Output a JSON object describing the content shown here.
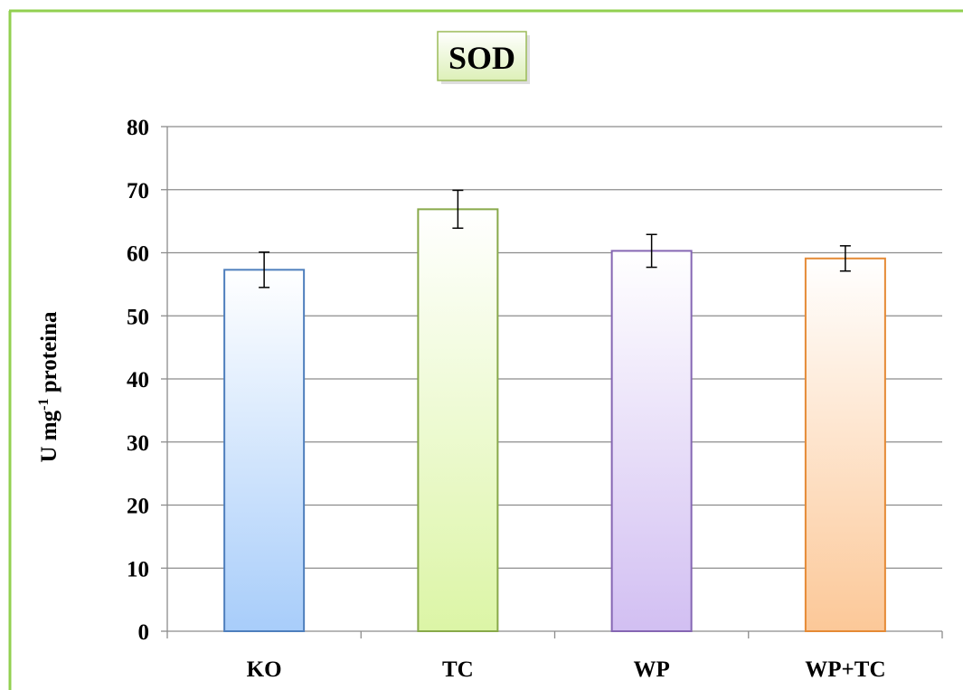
{
  "chart_data": {
    "type": "bar",
    "title": "SOD",
    "ylabel": "U mg",
    "ylabel_sup": "-1",
    "ylabel_after": " proteina",
    "categories": [
      "KO",
      "TC",
      "WP",
      "WP+TC"
    ],
    "values": [
      57.3,
      66.9,
      60.3,
      59.1
    ],
    "errors": [
      2.8,
      3.0,
      2.6,
      2.0
    ],
    "yticks": [
      "0",
      "10",
      "20",
      "30",
      "40",
      "50",
      "60",
      "70",
      "80"
    ],
    "ylim": [
      0,
      80
    ],
    "grid": true,
    "colors": {
      "bar_fills": [
        "#a8cdfa",
        "#dcf5a6",
        "#d2bff2",
        "#fcc898"
      ],
      "bar_strokes": [
        "#4f7fbd",
        "#88a94a",
        "#8566b3",
        "#e58a35"
      ],
      "frame": "#92d050",
      "title_box": "#ddf0b8"
    }
  }
}
